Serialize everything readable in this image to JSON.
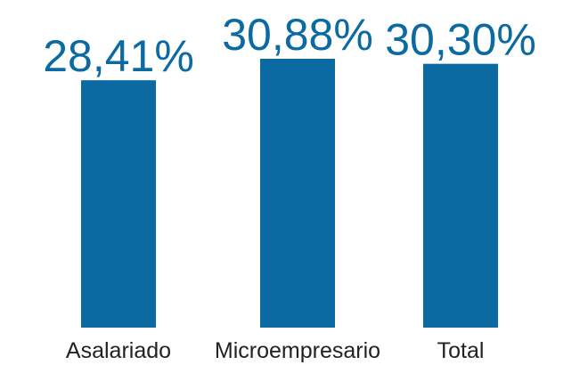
{
  "chart_data": {
    "type": "bar",
    "categories": [
      "Asalariado",
      "Microempresario",
      "Total"
    ],
    "values": [
      28.41,
      30.88,
      30.3
    ],
    "data_labels": [
      "28,41%",
      "30,88%",
      "30,30%"
    ],
    "ylim": [
      0,
      30.88
    ],
    "grid": false,
    "axes_visible": false,
    "colors": {
      "bar": "#0a6aa1",
      "value_label": "#0a6aa1",
      "category_label": "#222222"
    }
  }
}
